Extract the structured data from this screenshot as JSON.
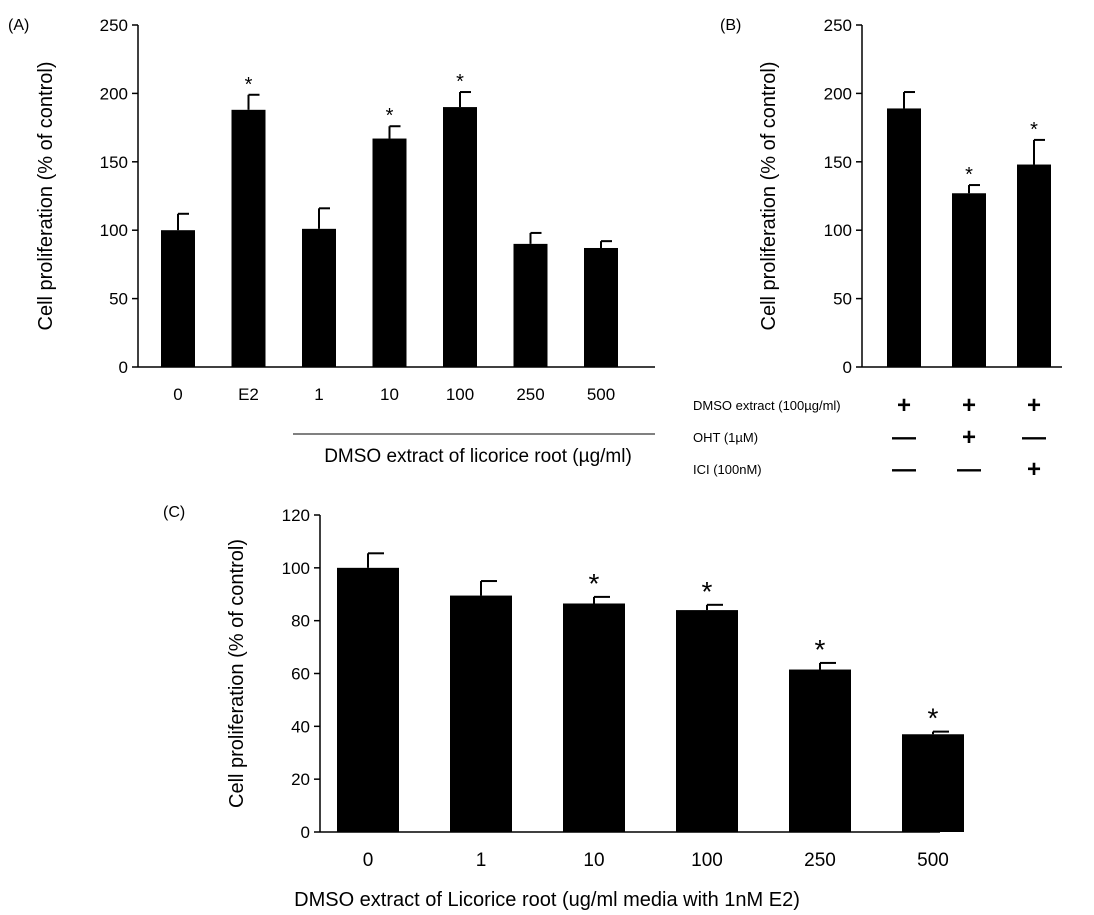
{
  "chart_data": [
    {
      "type": "bar",
      "panel_label": "(A)",
      "ylabel": "Cell proliferation (% of control)",
      "xlabel": "DMSO extract of licorice root (µg/ml)",
      "ylim": [
        0,
        250
      ],
      "yticks": [
        "0",
        "50",
        "100",
        "150",
        "200",
        "250"
      ],
      "categories": [
        "0",
        "E2",
        "1",
        "10",
        "100",
        "250",
        "500"
      ],
      "values": [
        100,
        188,
        101,
        167,
        190,
        90,
        87
      ],
      "errors": [
        12,
        11,
        15,
        9,
        11,
        8,
        5
      ],
      "significance": [
        "",
        "*",
        "",
        "*",
        "*",
        "",
        ""
      ],
      "bar_color": "#000000"
    },
    {
      "type": "bar",
      "panel_label": "(B)",
      "ylabel": "Cell proliferation (% of control)",
      "ylim": [
        0,
        250
      ],
      "yticks": [
        "0",
        "50",
        "100",
        "150",
        "200",
        "250"
      ],
      "values": [
        189,
        127,
        148
      ],
      "errors": [
        12,
        6,
        18
      ],
      "significance": [
        "",
        "*",
        "*"
      ],
      "bar_color": "#000000",
      "treatment_table": {
        "rows": [
          {
            "label": "DMSO extract (100µg/ml)",
            "signs": [
              "+",
              "+",
              "+"
            ]
          },
          {
            "label": "OHT (1µM)",
            "signs": [
              "—",
              "+",
              "—"
            ]
          },
          {
            "label": "ICI (100nM)",
            "signs": [
              "—",
              "—",
              "+"
            ]
          }
        ]
      }
    },
    {
      "type": "bar",
      "panel_label": "(C)",
      "ylabel": "Cell proliferation (% of control)",
      "xlabel": "DMSO extract of Licorice root (ug/ml media with 1nM E2)",
      "ylim": [
        0,
        120
      ],
      "yticks": [
        "0",
        "20",
        "40",
        "60",
        "80",
        "100",
        "120"
      ],
      "categories": [
        "0",
        "1",
        "10",
        "100",
        "250",
        "500"
      ],
      "values": [
        100,
        89.5,
        86.5,
        84,
        61.5,
        37
      ],
      "errors": [
        5.5,
        5.5,
        2.5,
        2,
        2.5,
        1
      ],
      "significance": [
        "",
        "",
        "*",
        "*",
        "*",
        "*"
      ],
      "bar_color": "#000000"
    }
  ]
}
